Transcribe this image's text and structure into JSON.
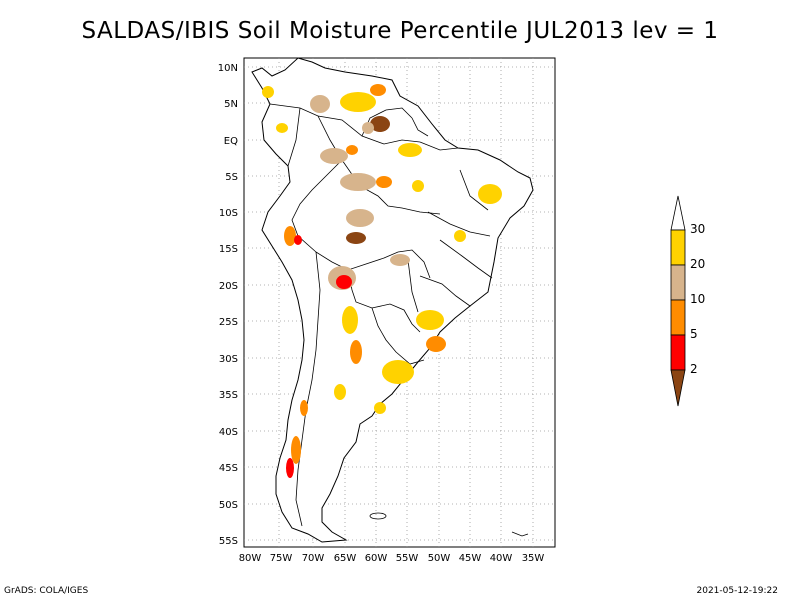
{
  "title": "SALDAS/IBIS Soil Moisture Percentile JUL2013 lev = 1",
  "map": {
    "lat_ticks": [
      "10N",
      "5N",
      "EQ",
      "5S",
      "10S",
      "15S",
      "20S",
      "25S",
      "30S",
      "35S",
      "40S",
      "45S",
      "50S",
      "55S"
    ],
    "lon_ticks": [
      "80W",
      "75W",
      "70W",
      "65W",
      "60W",
      "55W",
      "50W",
      "45W",
      "40W",
      "35W"
    ]
  },
  "legend": {
    "labels": [
      "30",
      "20",
      "10",
      "5",
      "2"
    ],
    "colors": [
      "#ffffff",
      "#ffd200",
      "#d7b48c",
      "#ff8c00",
      "#ff0000",
      "#8b4513"
    ]
  },
  "footer": {
    "left": "GrADS: COLA/IGES",
    "right": "2021-05-12-19:22"
  }
}
